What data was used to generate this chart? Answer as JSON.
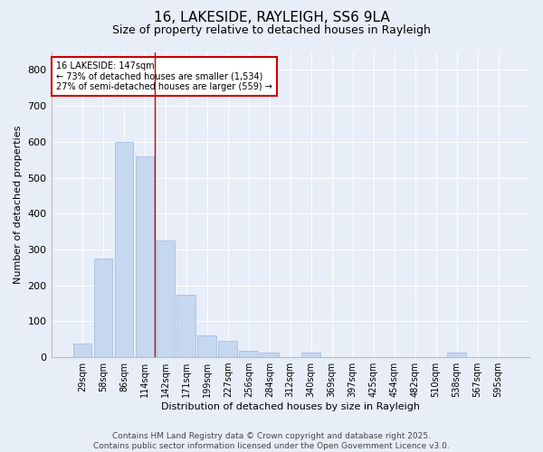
{
  "title1": "16, LAKESIDE, RAYLEIGH, SS6 9LA",
  "title2": "Size of property relative to detached houses in Rayleigh",
  "xlabel": "Distribution of detached houses by size in Rayleigh",
  "ylabel": "Number of detached properties",
  "categories": [
    "29sqm",
    "58sqm",
    "86sqm",
    "114sqm",
    "142sqm",
    "171sqm",
    "199sqm",
    "227sqm",
    "256sqm",
    "284sqm",
    "312sqm",
    "340sqm",
    "369sqm",
    "397sqm",
    "425sqm",
    "454sqm",
    "482sqm",
    "510sqm",
    "538sqm",
    "567sqm",
    "595sqm"
  ],
  "values": [
    38,
    275,
    600,
    560,
    325,
    175,
    60,
    45,
    18,
    14,
    0,
    12,
    0,
    0,
    0,
    0,
    0,
    0,
    12,
    0,
    0
  ],
  "bar_color": "#c5d8f0",
  "bar_edgecolor": "#a0b8d8",
  "vline_x": 4,
  "vline_color": "#cc0000",
  "annotation_text": "16 LAKESIDE: 147sqm\n← 73% of detached houses are smaller (1,534)\n27% of semi-detached houses are larger (559) →",
  "annotation_box_color": "#ffffff",
  "annotation_box_edgecolor": "#cc0000",
  "ylim": [
    0,
    850
  ],
  "yticks": [
    0,
    100,
    200,
    300,
    400,
    500,
    600,
    700,
    800
  ],
  "background_color": "#e8eef8",
  "plot_background": "#e8eef8",
  "footer1": "Contains HM Land Registry data © Crown copyright and database right 2025.",
  "footer2": "Contains public sector information licensed under the Open Government Licence v3.0.",
  "title1_fontsize": 11,
  "title2_fontsize": 9,
  "axis_label_fontsize": 8,
  "tick_fontsize": 7,
  "annotation_fontsize": 7,
  "footer_fontsize": 6.5
}
